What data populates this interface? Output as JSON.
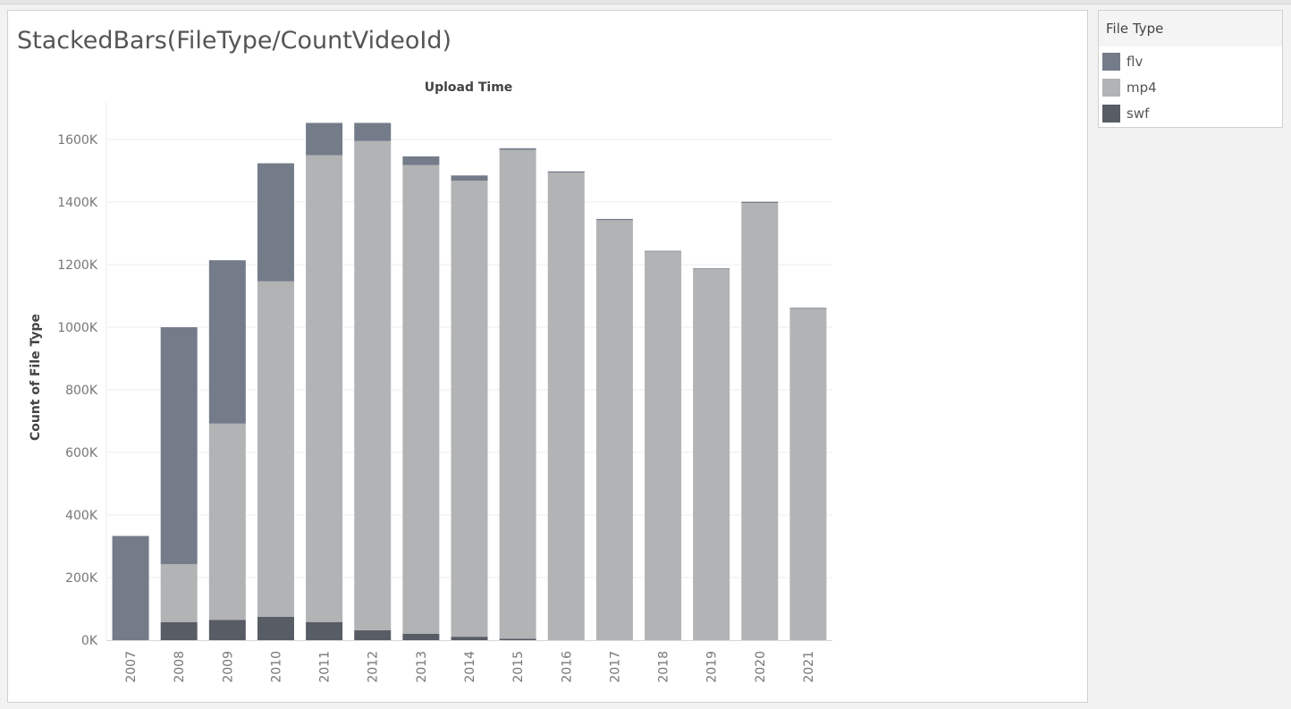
{
  "chart_data": {
    "type": "bar",
    "stacked": true,
    "title": "StackedBars(FileType/CountVideoId)",
    "xlabel": "Upload Time",
    "ylabel": "Count of File Type",
    "ylim": [
      0,
      1720
    ],
    "y_ticks": [
      0,
      200,
      400,
      600,
      800,
      1000,
      1200,
      1400,
      1600
    ],
    "y_tick_labels": [
      "0K",
      "200K",
      "400K",
      "600K",
      "800K",
      "1000K",
      "1200K",
      "1400K",
      "1600K"
    ],
    "categories": [
      "2007",
      "2008",
      "2009",
      "2010",
      "2011",
      "2012",
      "2013",
      "2014",
      "2015",
      "2016",
      "2017",
      "2018",
      "2019",
      "2020",
      "2021"
    ],
    "grid": "horizontal",
    "legend_position": "right",
    "series": [
      {
        "name": "swf",
        "color": "#585c65",
        "values": [
          0,
          58,
          65,
          75,
          58,
          32,
          20,
          11,
          5,
          0,
          0,
          0,
          0,
          0,
          0
        ]
      },
      {
        "name": "mp4",
        "color": "#b1b3b4",
        "values": [
          0,
          185,
          627,
          1072,
          1492,
          1563,
          1498,
          1457,
          1562,
          1494,
          1342,
          1242,
          1186,
          1397,
          1060
        ]
      },
      {
        "name": "flv",
        "color": "#747b89",
        "values": [
          333,
          757,
          522,
          377,
          103,
          58,
          28,
          17,
          5,
          4,
          4,
          2,
          2,
          4,
          2
        ]
      }
    ]
  },
  "legend": {
    "title": "File Type",
    "items": [
      {
        "label": "flv",
        "color": "#747b89"
      },
      {
        "label": "mp4",
        "color": "#b1b3b4"
      },
      {
        "label": "swf",
        "color": "#585c65"
      }
    ]
  }
}
